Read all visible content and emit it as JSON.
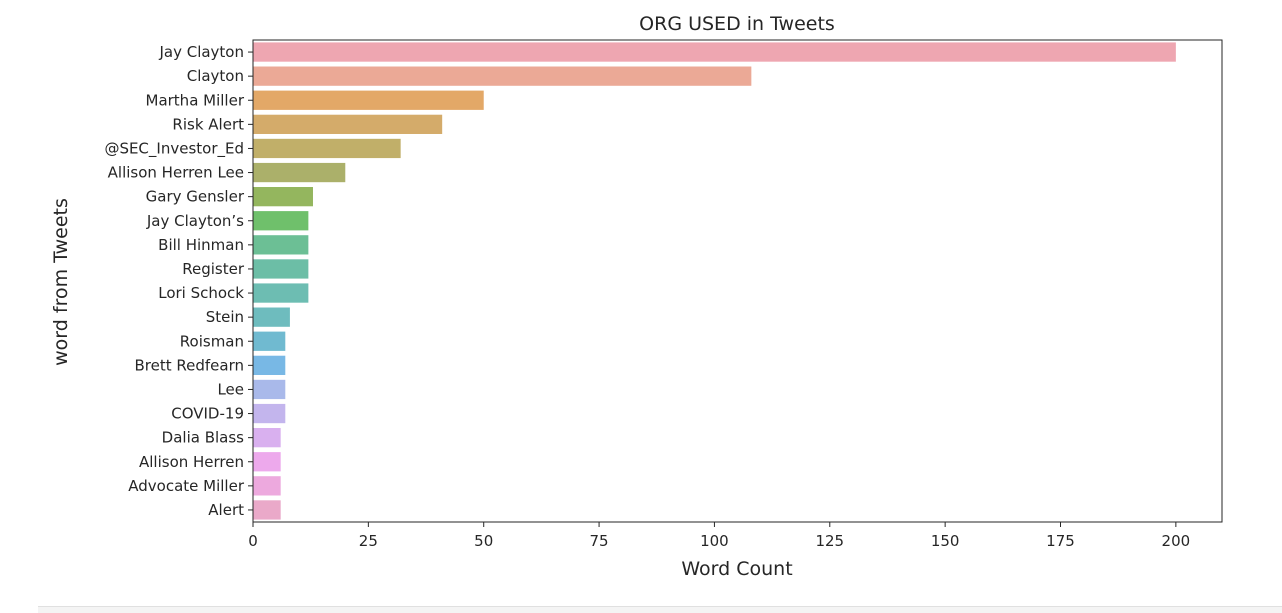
{
  "chart_data": {
    "type": "bar",
    "orientation": "horizontal",
    "title": "ORG USED in Tweets",
    "xlabel": "Word Count",
    "ylabel": "word from Tweets",
    "xlim": [
      0,
      210
    ],
    "xticks": [
      0,
      25,
      50,
      75,
      100,
      125,
      150,
      175,
      200
    ],
    "grid": false,
    "categories": [
      "Jay Clayton",
      "Clayton",
      "Martha Miller",
      "Risk Alert",
      "@SEC_Investor_Ed",
      "Allison Herren Lee",
      "Gary Gensler",
      "Jay Clayton’s",
      "Bill Hinman",
      "Register",
      "Lori Schock",
      "Stein",
      "Roisman",
      "Brett Redfearn",
      "Lee",
      "COVID-19",
      "Dalia Blass",
      "Allison Herren",
      "Advocate Miller",
      "Alert"
    ],
    "values": [
      200,
      108,
      50,
      41,
      32,
      20,
      13,
      12,
      12,
      12,
      12,
      8,
      7,
      7,
      7,
      7,
      6,
      6,
      6,
      6
    ],
    "colors": [
      "#eea6b1",
      "#eba996",
      "#e3a867",
      "#d4ab6a",
      "#c1af69",
      "#abb06a",
      "#94b65e",
      "#6fc06b",
      "#6cbf95",
      "#6cbea6",
      "#6dbdb2",
      "#6ebcbe",
      "#70bad0",
      "#78b8e5",
      "#a9b9ea",
      "#c3b5ed",
      "#d9b0ef",
      "#eda9ec",
      "#eda9de",
      "#eaa9c9"
    ]
  }
}
